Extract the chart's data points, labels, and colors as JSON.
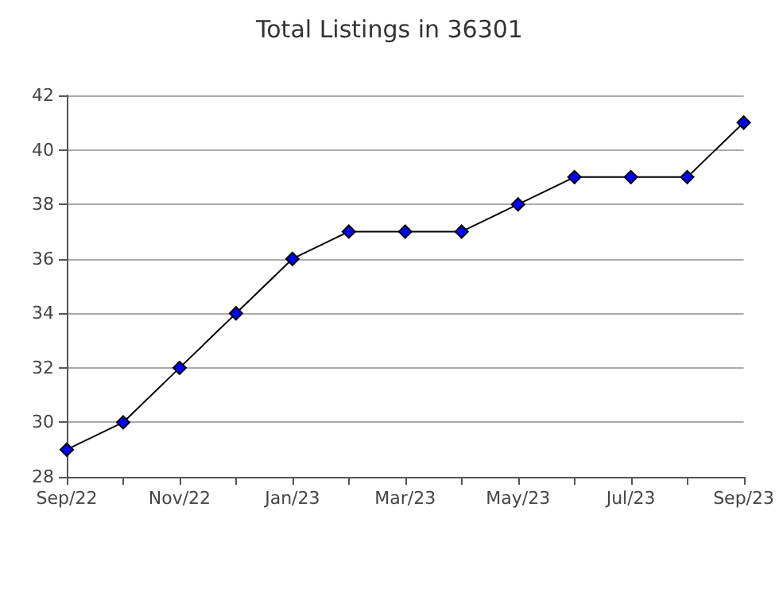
{
  "chart_data": {
    "type": "line",
    "title": "Total Listings in 36301",
    "categories": [
      "Sep/22",
      null,
      "Nov/22",
      null,
      "Jan/23",
      null,
      "Mar/23",
      null,
      "May/23",
      null,
      "Jul/23",
      null,
      "Sep/23"
    ],
    "series": [
      {
        "color": "#0000ff",
        "values": [
          29,
          30,
          32,
          34,
          36,
          37,
          37,
          37,
          38,
          39,
          39,
          39,
          41
        ]
      }
    ],
    "ylim": [
      28,
      42
    ],
    "yticks": [
      28,
      30,
      32,
      34,
      36,
      38,
      40,
      42
    ],
    "grid": "y",
    "marker": "diamond"
  }
}
